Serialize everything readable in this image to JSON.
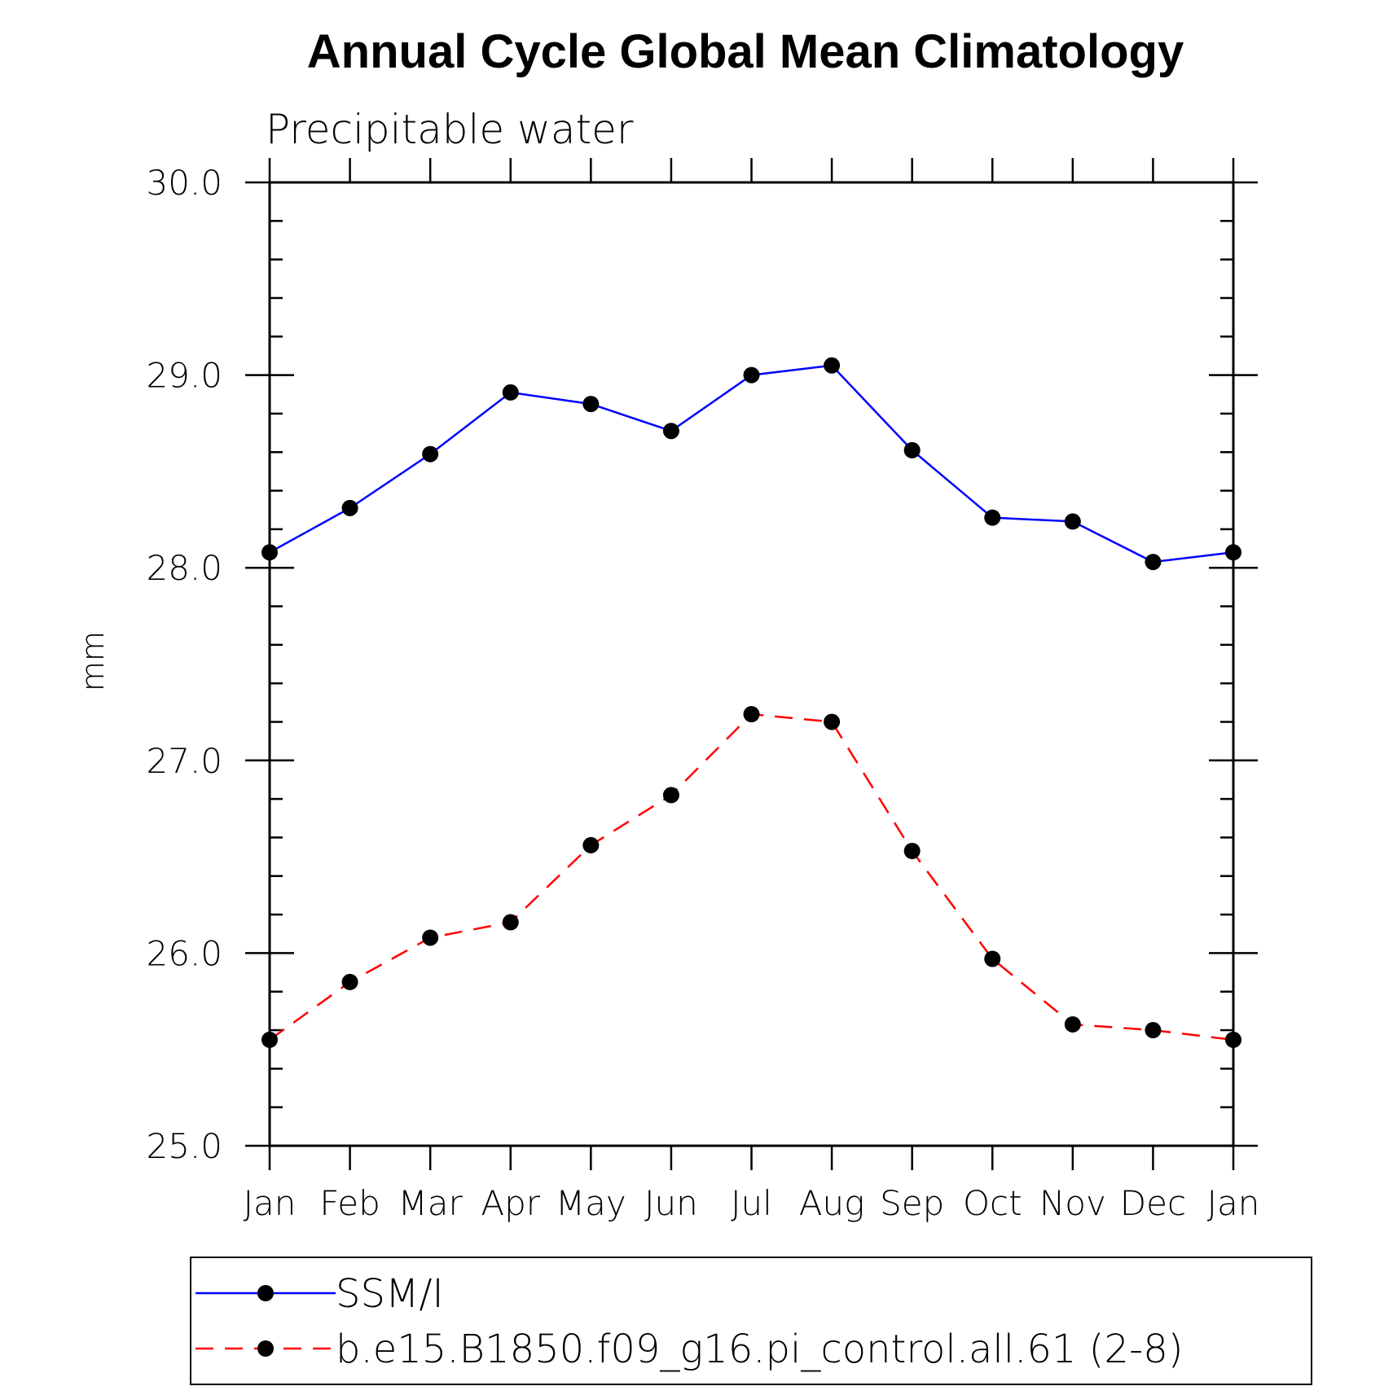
{
  "chart_data": {
    "type": "line",
    "title": "Annual Cycle Global Mean Climatology",
    "subtitle": "Precipitable water",
    "ylabel": "mm",
    "xlabel": "",
    "ylim": [
      25.0,
      30.0
    ],
    "yticks": [
      "25.0",
      "26.0",
      "27.0",
      "28.0",
      "29.0",
      "30.0"
    ],
    "categories": [
      "Jan",
      "Feb",
      "Mar",
      "Apr",
      "May",
      "Jun",
      "Jul",
      "Aug",
      "Sep",
      "Oct",
      "Nov",
      "Dec",
      "Jan"
    ],
    "series": [
      {
        "name": "SSM/I",
        "color": "#0000ff",
        "dash": "solid",
        "values": [
          28.08,
          28.31,
          28.59,
          28.91,
          28.85,
          28.71,
          29.0,
          29.05,
          28.61,
          28.26,
          28.24,
          28.03,
          28.08
        ]
      },
      {
        "name": "b.e15.B1850.f09_g16.pi_control.all.61 (2-8)",
        "color": "#ff0000",
        "dash": "dashed",
        "values": [
          25.55,
          25.85,
          26.08,
          26.16,
          26.56,
          26.82,
          27.24,
          27.2,
          26.53,
          25.97,
          25.63,
          25.6,
          25.55
        ]
      }
    ],
    "legend_position": "bottom",
    "marker": "filled-circle",
    "marker_color": "#000000"
  }
}
